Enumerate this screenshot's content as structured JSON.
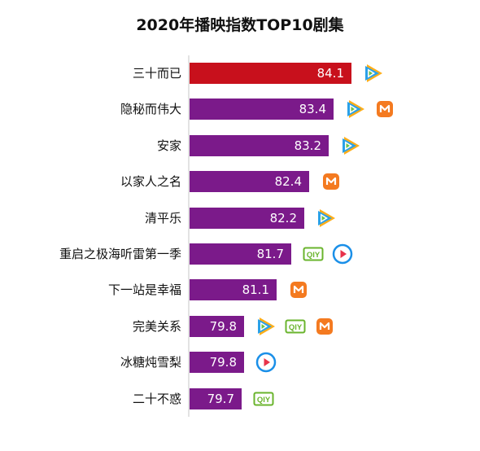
{
  "chart_data": {
    "type": "bar",
    "orientation": "horizontal",
    "title": "2020年播映指数TOP10剧集",
    "categories": [
      "三十而已",
      "隐秘而伟大",
      "安家",
      "以家人之名",
      "清平乐",
      "重启之极海听雷第一季",
      "下一站是幸福",
      "完美关系",
      "冰糖炖雪梨",
      "二十不惑"
    ],
    "values": [
      84.1,
      83.4,
      83.2,
      82.4,
      82.2,
      81.7,
      81.1,
      79.8,
      79.8,
      79.7
    ],
    "value_labels": [
      "84.1",
      "83.4",
      "83.2",
      "82.4",
      "82.2",
      "81.7",
      "81.1",
      "79.8",
      "79.8",
      "79.7"
    ],
    "xlim": [
      77.6,
      84.1
    ],
    "colors": {
      "highlight": "#c8101c",
      "default": "#7b1a8a"
    },
    "platforms": [
      [
        "tencent-video"
      ],
      [
        "tencent-video",
        "mango-tv"
      ],
      [
        "tencent-video"
      ],
      [
        "mango-tv"
      ],
      [
        "tencent-video"
      ],
      [
        "iqiyi",
        "youku"
      ],
      [
        "mango-tv"
      ],
      [
        "tencent-video",
        "iqiyi",
        "mango-tv"
      ],
      [
        "youku"
      ],
      [
        "iqiyi"
      ]
    ],
    "platform_labels": {
      "iqiyi": "QIY"
    },
    "platform_colors": {
      "tencent-video": "#2aa1e8",
      "mango-tv": "#f47a20",
      "iqiyi": "#6ab42d",
      "youku": "#1a8fe8"
    }
  }
}
